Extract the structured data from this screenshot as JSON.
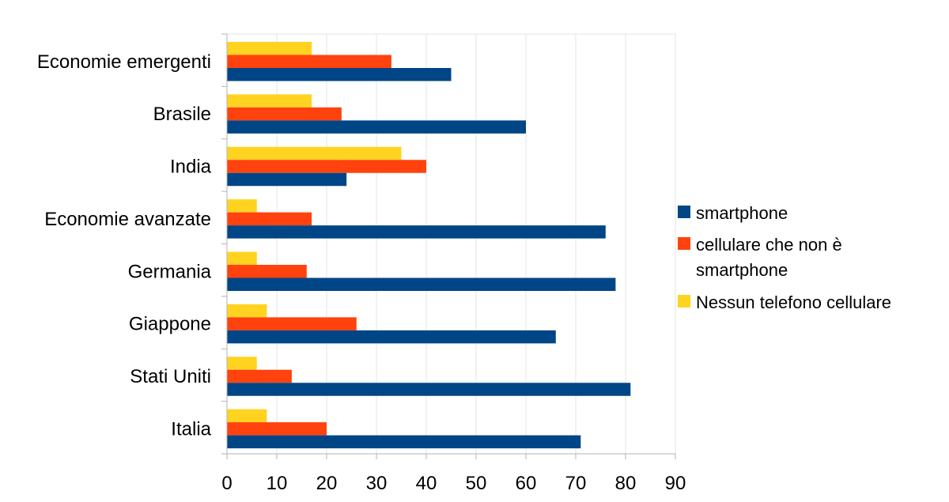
{
  "chart_data": {
    "type": "bar",
    "orientation": "horizontal",
    "categories": [
      "Economie emergenti",
      "Brasile",
      "India",
      "Economie avanzate",
      "Germania",
      "Giappone",
      "Stati Uniti",
      "Italia"
    ],
    "series": [
      {
        "name": "smartphone",
        "color": "#004586",
        "values": [
          45,
          60,
          24,
          76,
          78,
          66,
          81,
          71
        ]
      },
      {
        "name": " cellulare che non è smartphone",
        "color": "#ff420e",
        "values": [
          33,
          23,
          40,
          17,
          16,
          26,
          13,
          20
        ]
      },
      {
        "name": "Nessun telefono cellulare",
        "color": "#ffd320",
        "values": [
          17,
          17,
          35,
          6,
          6,
          8,
          6,
          8
        ]
      }
    ],
    "xlim": [
      0,
      90
    ],
    "xticks": [
      0,
      10,
      20,
      30,
      40,
      50,
      60,
      70,
      80,
      90
    ],
    "grid": true,
    "legend_position": "right",
    "legend_lines": [
      [
        "smartphone"
      ],
      [
        " cellulare che non è",
        "smartphone"
      ],
      [
        "Nessun telefono cellulare"
      ]
    ]
  }
}
